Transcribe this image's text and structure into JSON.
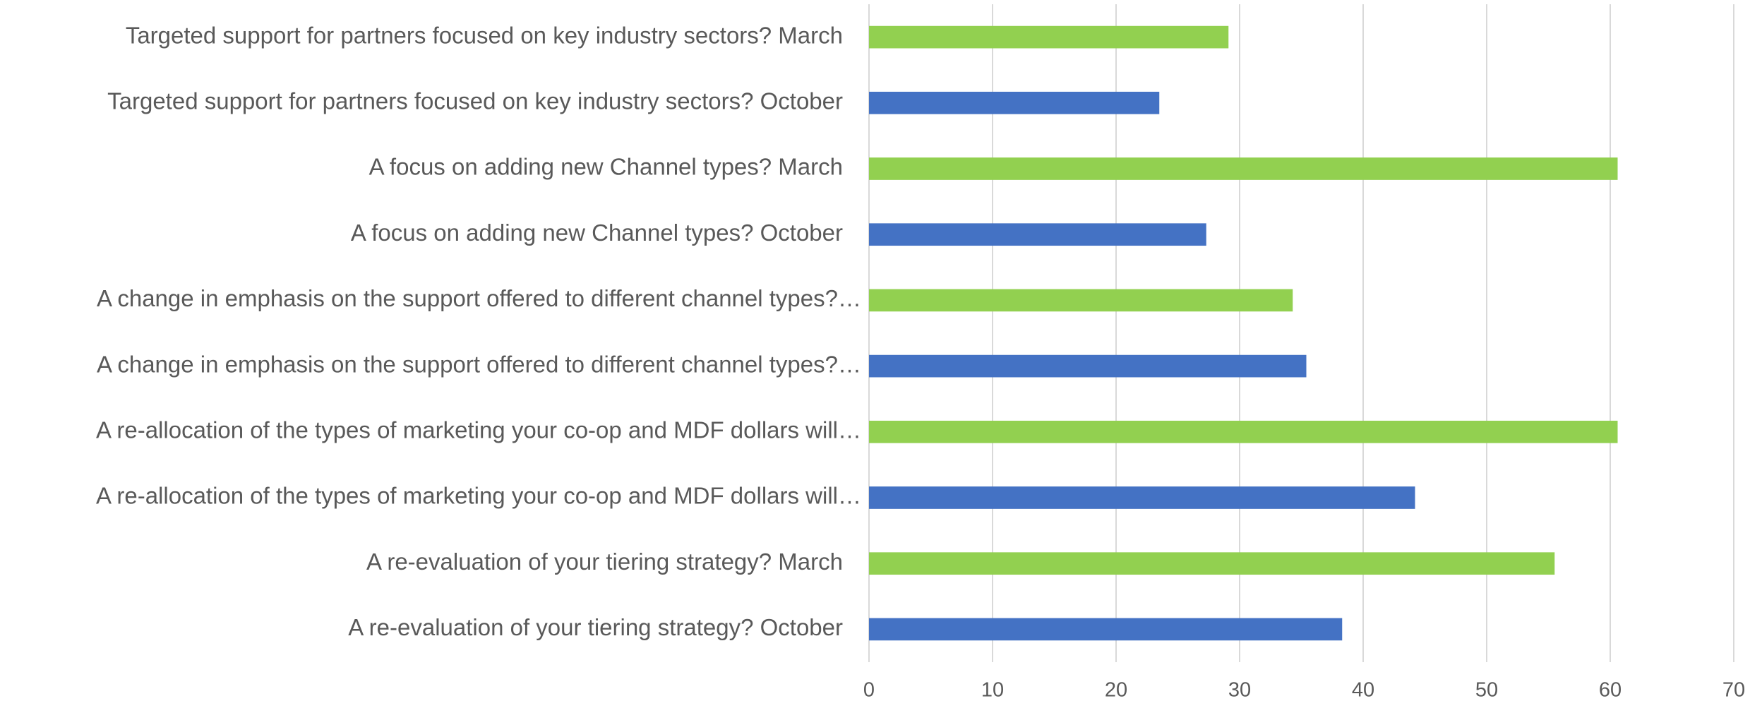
{
  "chart_data": {
    "type": "bar",
    "orientation": "horizontal",
    "categories": [
      "Targeted support for partners focused on key industry sectors? March",
      "Targeted support for partners focused on key industry sectors? October",
      "A focus on adding new Channel types? March",
      "A focus on adding new Channel types? October",
      "A change in emphasis on the support offered to different channel types?…",
      "A change in emphasis on the support offered to different channel types?…",
      "A re-allocation of the types of marketing your co-op and MDF dollars will…",
      "A re-allocation of the types of marketing your co-op and MDF dollars will…",
      "A re-evaluation of your tiering strategy? March",
      "A re-evaluation of your tiering strategy? October"
    ],
    "values": [
      29.1,
      23.5,
      60.6,
      27.3,
      34.3,
      35.4,
      60.6,
      44.2,
      55.5,
      38.3
    ],
    "colors": [
      "#92d050",
      "#4472c4",
      "#92d050",
      "#4472c4",
      "#92d050",
      "#4472c4",
      "#92d050",
      "#4472c4",
      "#92d050",
      "#4472c4"
    ],
    "xlim": [
      0,
      70
    ],
    "xticks": [
      0,
      10,
      20,
      30,
      40,
      50,
      60,
      70
    ],
    "grid": true
  }
}
